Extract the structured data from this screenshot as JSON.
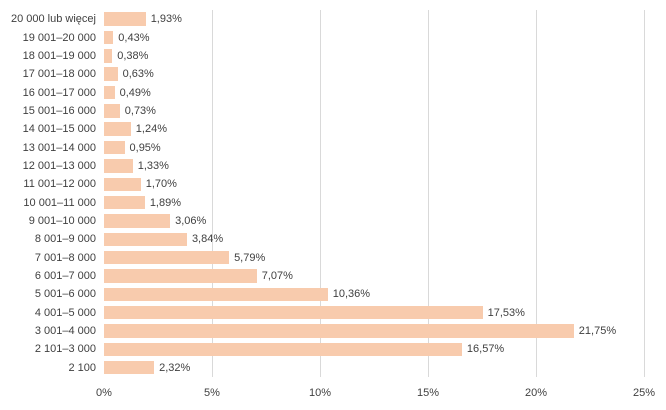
{
  "chart_data": {
    "type": "bar",
    "orientation": "horizontal",
    "title": "",
    "xlabel": "",
    "ylabel": "",
    "categories": [
      "20 000 lub więcej",
      "19 001–20 000",
      "18 001–19 000",
      "17 001–18 000",
      "16 001–17 000",
      "15 001–16 000",
      "14 001–15 000",
      "13 001–14 000",
      "12 001–13 000",
      "11 001–12 000",
      "10 001–11 000",
      "9 001–10 000",
      "8 001–9 000",
      "7 001–8 000",
      "6 001–7 000",
      "5 001–6 000",
      "4 001–5 000",
      "3 001–4 000",
      "2 101–3 000",
      "2 100"
    ],
    "values": [
      1.93,
      0.43,
      0.38,
      0.63,
      0.49,
      0.73,
      1.24,
      0.95,
      1.33,
      1.7,
      1.89,
      3.06,
      3.84,
      5.79,
      7.07,
      10.36,
      17.53,
      21.75,
      16.57,
      2.32
    ],
    "value_labels": [
      "1,93%",
      "0,43%",
      "0,38%",
      "0,63%",
      "0,49%",
      "0,73%",
      "1,24%",
      "0,95%",
      "1,33%",
      "1,70%",
      "1,89%",
      "3,06%",
      "3,84%",
      "5,79%",
      "7,07%",
      "10,36%",
      "17,53%",
      "21,75%",
      "16,57%",
      "2,32%"
    ],
    "x_ticks": [
      "0%",
      "5%",
      "10%",
      "15%",
      "20%",
      "25%"
    ],
    "xlim": [
      0,
      25
    ],
    "grid": "vertical",
    "legend": "none",
    "colors": {
      "bar_fill": "#f8cbad",
      "gridline": "#d9d9d9",
      "text": "#404040",
      "background": "#ffffff"
    }
  }
}
